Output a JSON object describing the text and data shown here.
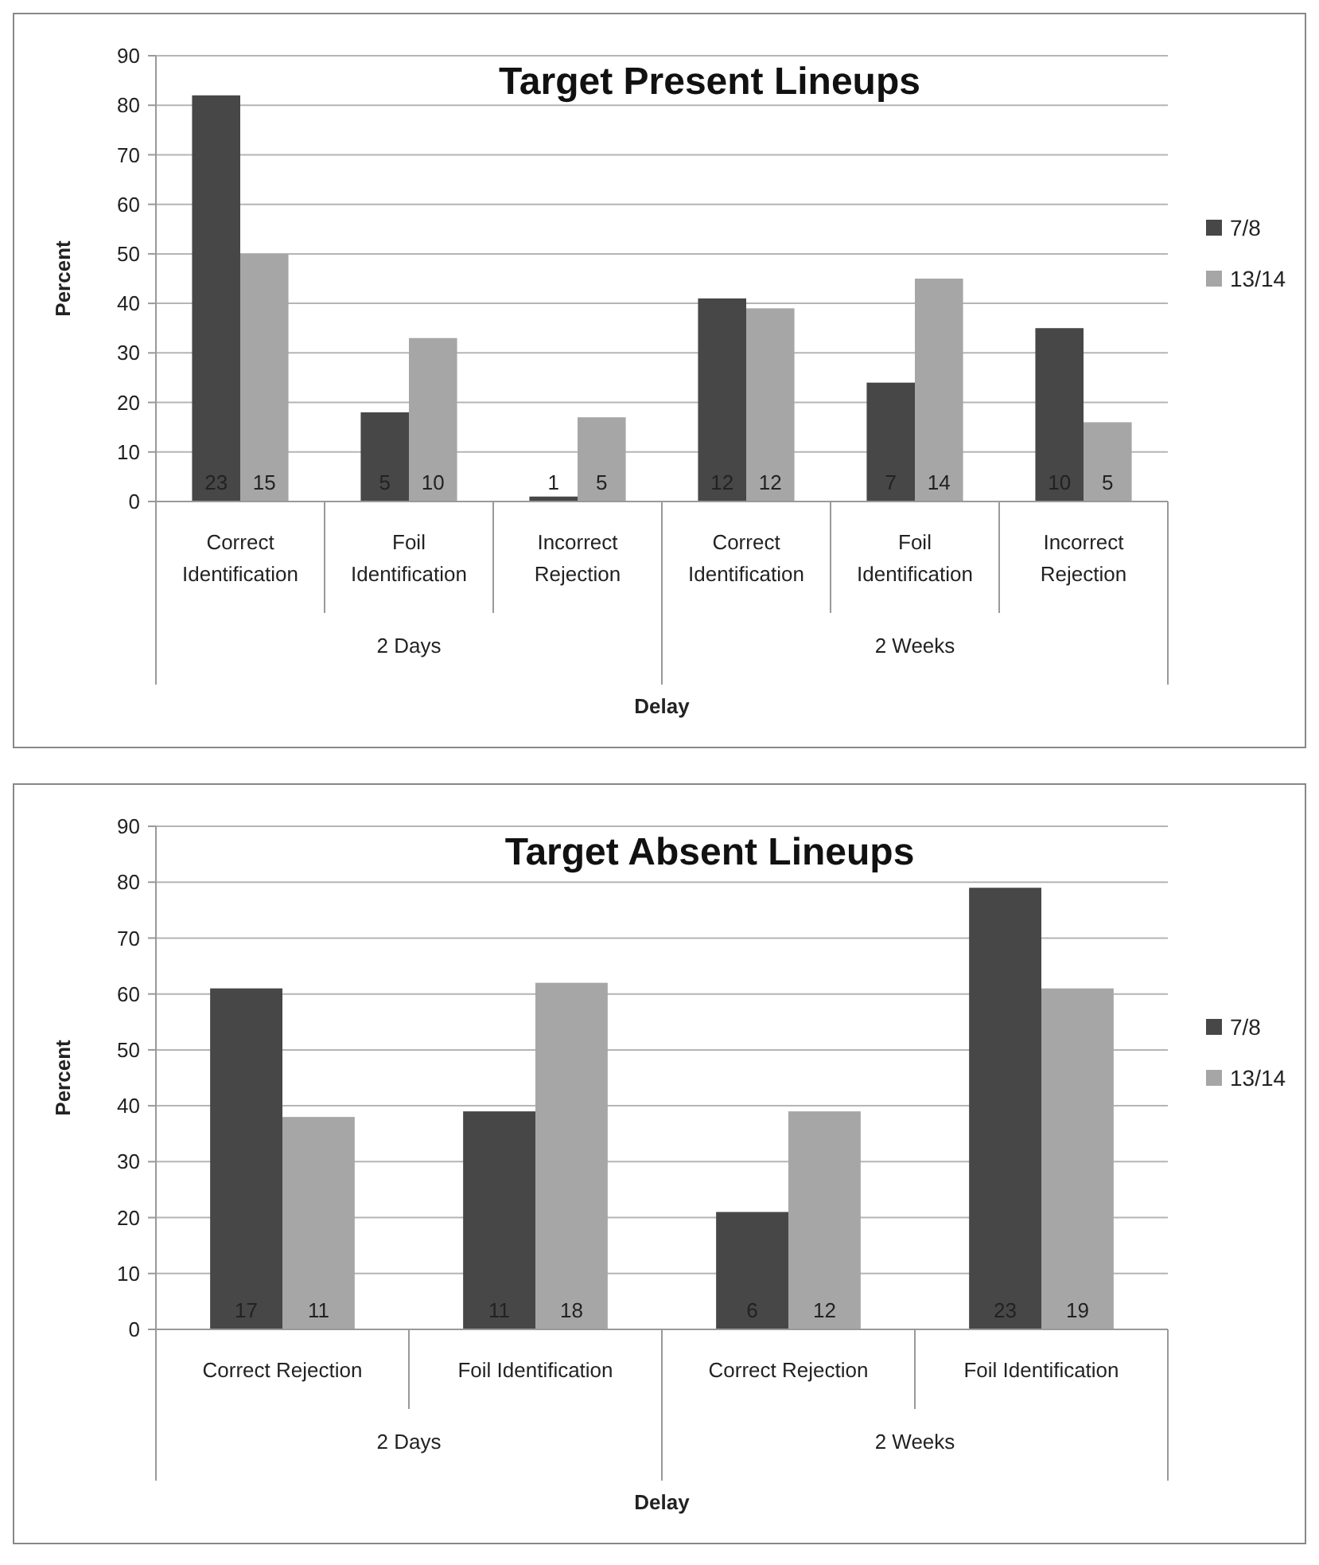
{
  "chart_data": [
    {
      "type": "bar",
      "title": "Target Present Lineups",
      "xlabel": "Delay",
      "ylabel": "Percent",
      "categories": [
        "Correct Identification",
        "Foil Identification",
        "Incorrect Rejection",
        "Correct Identification",
        "Foil Identification",
        "Incorrect Rejection"
      ],
      "series": [
        {
          "name": "7/8",
          "color": "#474747",
          "values": [
            82,
            18,
            1,
            41,
            24,
            35
          ]
        },
        {
          "name": "13/14",
          "color": "#a6a6a6",
          "values": [
            50,
            33,
            17,
            39,
            45,
            16
          ]
        }
      ],
      "ylim": [
        0,
        90
      ],
      "yticks": [
        0,
        10,
        20,
        30,
        40,
        50,
        60,
        70,
        80,
        90
      ],
      "grid": "y",
      "legend": "right",
      "annotations": [
        "2 Days",
        "2 Weeks",
        "23",
        "5",
        "1",
        "12",
        "7",
        "10",
        "15",
        "10",
        "5",
        "12",
        "14",
        "5"
      ]
    },
    {
      "type": "bar",
      "title": "Target Absent Lineups",
      "xlabel": "Delay",
      "ylabel": "Percent",
      "categories": [
        "Correct Rejection",
        "Foil Identification",
        "Correct Rejection",
        "Foil Identification"
      ],
      "series": [
        {
          "name": "7/8",
          "color": "#474747",
          "values": [
            61,
            39,
            21,
            79
          ]
        },
        {
          "name": "13/14",
          "color": "#a6a6a6",
          "values": [
            38,
            62,
            39,
            61
          ]
        }
      ],
      "ylim": [
        0,
        90
      ],
      "yticks": [
        0,
        10,
        20,
        30,
        40,
        50,
        60,
        70,
        80,
        90
      ],
      "grid": "y",
      "legend": "right",
      "annotations": [
        "2 Days",
        "2 Weeks",
        "17",
        "11",
        "6",
        "23",
        "11",
        "18",
        "12",
        "19"
      ]
    }
  ]
}
